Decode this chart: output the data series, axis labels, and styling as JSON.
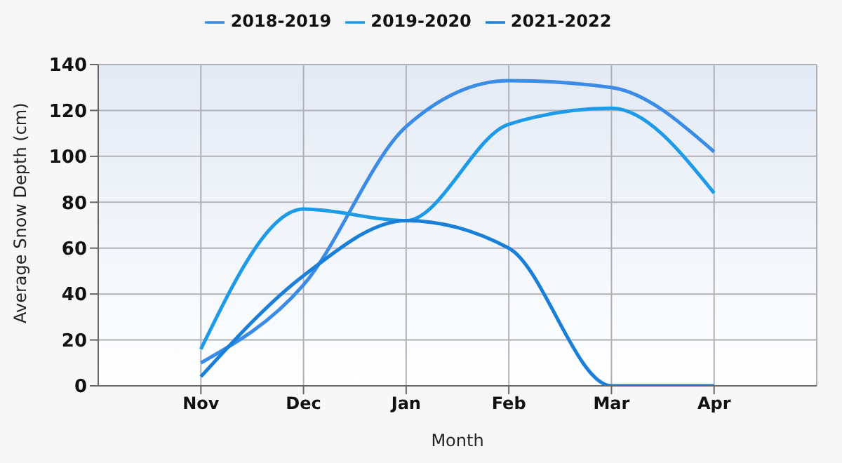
{
  "chart_data": {
    "type": "line",
    "xlabel": "Month",
    "ylabel": "Average Snow Depth (cm)",
    "categories": [
      "Nov",
      "Dec",
      "Jan",
      "Feb",
      "Mar",
      "Apr"
    ],
    "series": [
      {
        "name": "2018-2019",
        "color": "#3a8ce6",
        "values": [
          10,
          44,
          113,
          133,
          130,
          102
        ]
      },
      {
        "name": "2019-2020",
        "color": "#1e9be8",
        "values": [
          16,
          77,
          72,
          114,
          121,
          84
        ]
      },
      {
        "name": "2021-2022",
        "color": "#1a7fd9",
        "values": [
          4,
          48,
          72,
          60,
          0,
          0
        ]
      }
    ],
    "ylim": [
      0,
      140
    ],
    "yticks": [
      0,
      20,
      40,
      60,
      80,
      100,
      120,
      140
    ],
    "grid": true,
    "legend": "top",
    "marker": "none",
    "line_style": "solid"
  }
}
